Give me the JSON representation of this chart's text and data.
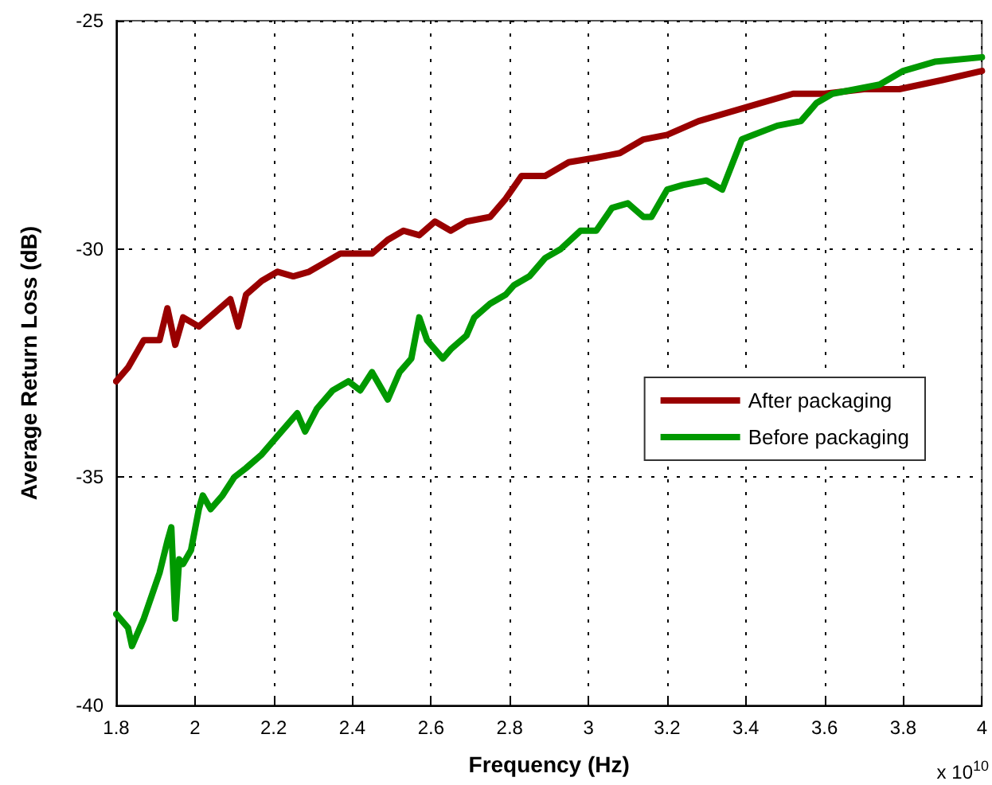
{
  "chart_data": {
    "type": "line",
    "xlabel": "Frequency (Hz)",
    "ylabel": "Average Return Loss (dB)",
    "xlim": [
      1.8,
      4
    ],
    "xticks": [
      1.8,
      2,
      2.2,
      2.4,
      2.6,
      2.8,
      3,
      3.2,
      3.4,
      3.6,
      3.8,
      4
    ],
    "ylim": [
      -40,
      -25
    ],
    "yticks": [
      -40,
      -35,
      -30,
      -25
    ],
    "grid": true,
    "legend": "center right",
    "marker": "none",
    "line_style": "solid",
    "annotations": [
      "x 10$^{10}$"
    ],
    "series": [
      {
        "name": "After packaging",
        "color": "#990000",
        "x": [
          1.8,
          1.83,
          1.87,
          1.91,
          1.93,
          1.95,
          1.97,
          2.01,
          2.05,
          2.09,
          2.11,
          2.13,
          2.17,
          2.21,
          2.25,
          2.29,
          2.33,
          2.37,
          2.41,
          2.45,
          2.49,
          2.53,
          2.57,
          2.61,
          2.65,
          2.69,
          2.75,
          2.79,
          2.83,
          2.89,
          2.95,
          3.02,
          3.08,
          3.14,
          3.2,
          3.28,
          3.36,
          3.44,
          3.52,
          3.6,
          3.7,
          3.79,
          3.9,
          4.0
        ],
        "values": [
          -32.9,
          -32.6,
          -32.0,
          -32.0,
          -31.3,
          -32.1,
          -31.5,
          -31.7,
          -31.4,
          -31.1,
          -31.7,
          -31.0,
          -30.7,
          -30.5,
          -30.6,
          -30.5,
          -30.3,
          -30.1,
          -30.1,
          -30.1,
          -29.8,
          -29.6,
          -29.7,
          -29.4,
          -29.6,
          -29.4,
          -29.3,
          -28.9,
          -28.4,
          -28.4,
          -28.1,
          -28.0,
          -27.9,
          -27.6,
          -27.5,
          -27.2,
          -27.0,
          -26.8,
          -26.6,
          -26.6,
          -26.5,
          -26.5,
          -26.3,
          -26.1
        ]
      },
      {
        "name": "Before packaging",
        "color": "#009900",
        "x": [
          1.8,
          1.83,
          1.84,
          1.87,
          1.89,
          1.91,
          1.93,
          1.94,
          1.95,
          1.96,
          1.97,
          1.99,
          2.01,
          2.02,
          2.04,
          2.07,
          2.1,
          2.13,
          2.17,
          2.21,
          2.26,
          2.28,
          2.31,
          2.35,
          2.39,
          2.42,
          2.45,
          2.49,
          2.52,
          2.55,
          2.57,
          2.59,
          2.63,
          2.65,
          2.69,
          2.71,
          2.75,
          2.79,
          2.81,
          2.85,
          2.89,
          2.93,
          2.98,
          3.02,
          3.06,
          3.1,
          3.14,
          3.16,
          3.2,
          3.24,
          3.3,
          3.34,
          3.39,
          3.42,
          3.48,
          3.54,
          3.58,
          3.62,
          3.68,
          3.74,
          3.8,
          3.88,
          4.0
        ],
        "values": [
          -38.0,
          -38.3,
          -38.7,
          -38.1,
          -37.6,
          -37.1,
          -36.4,
          -36.1,
          -38.1,
          -36.8,
          -36.9,
          -36.6,
          -35.7,
          -35.4,
          -35.7,
          -35.4,
          -35.0,
          -34.8,
          -34.5,
          -34.1,
          -33.6,
          -34.0,
          -33.5,
          -33.1,
          -32.9,
          -33.1,
          -32.7,
          -33.3,
          -32.7,
          -32.4,
          -31.5,
          -32.0,
          -32.4,
          -32.2,
          -31.9,
          -31.5,
          -31.2,
          -31.0,
          -30.8,
          -30.6,
          -30.2,
          -30.0,
          -29.6,
          -29.6,
          -29.1,
          -29.0,
          -29.3,
          -29.3,
          -28.7,
          -28.6,
          -28.5,
          -28.7,
          -27.6,
          -27.5,
          -27.3,
          -27.2,
          -26.8,
          -26.6,
          -26.5,
          -26.4,
          -26.1,
          -25.9,
          -25.8
        ]
      }
    ]
  }
}
